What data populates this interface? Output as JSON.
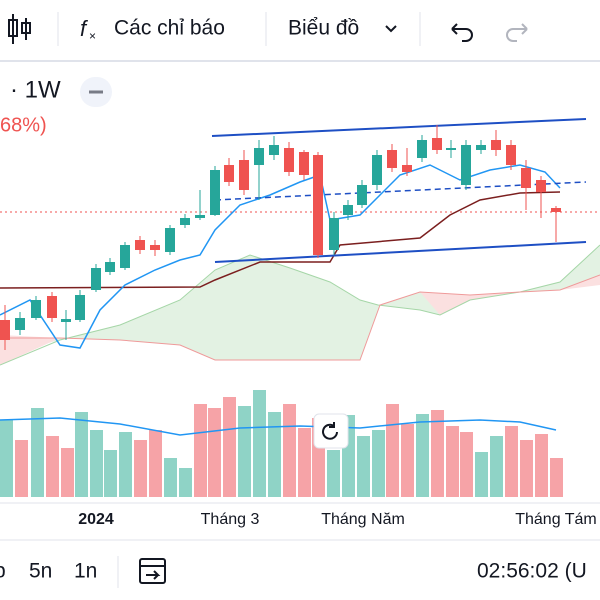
{
  "toolbar": {
    "indicators": "Các chỉ báo",
    "chart_type": "Biểu đồ"
  },
  "chart_header": {
    "interval": "· 1W",
    "change": "68%)"
  },
  "time_axis": {
    "labels": [
      "2024",
      "Tháng 3",
      "Tháng Năm",
      "Tháng Tám"
    ]
  },
  "bottom_bar": {
    "ranges": [
      "p",
      "5n",
      "1n"
    ],
    "clock": "02:56:02 (U"
  }
}
